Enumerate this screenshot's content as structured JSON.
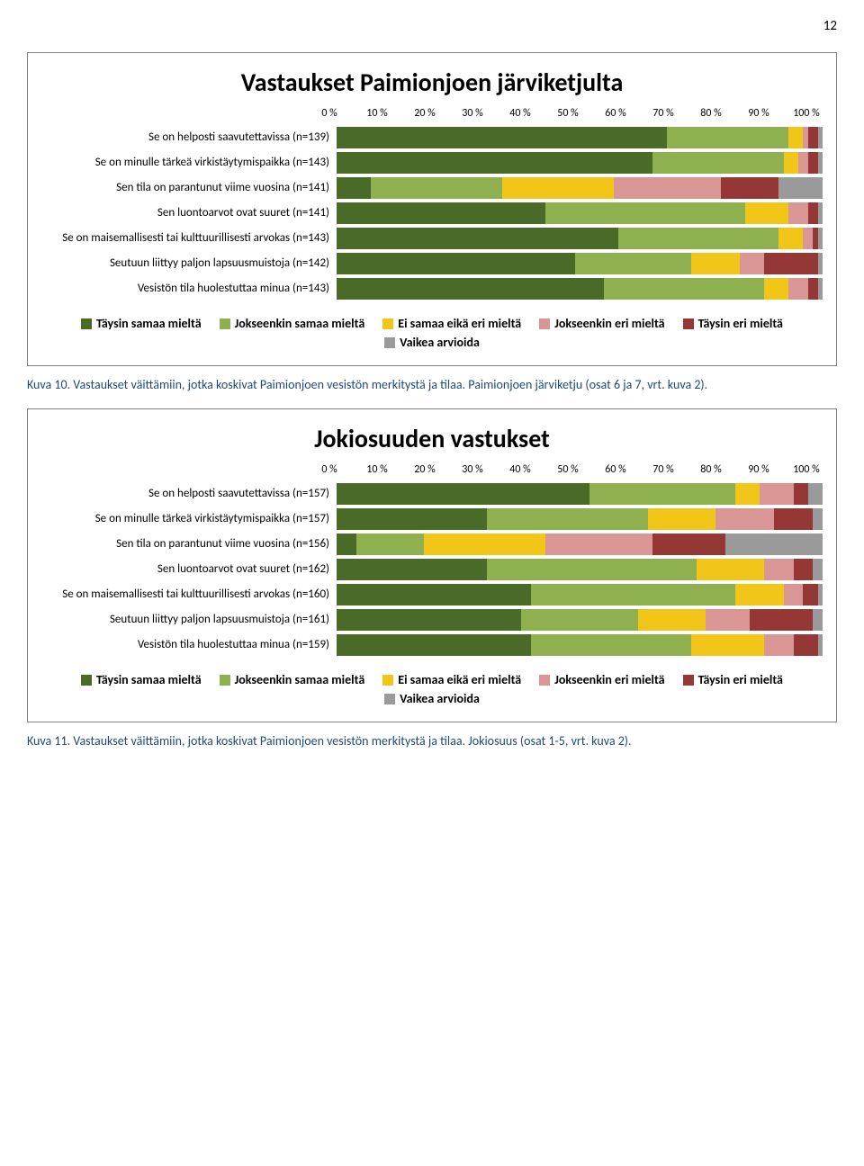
{
  "page_number": "12",
  "colors": {
    "c1": "#4a6b28",
    "c2": "#8fb04e",
    "c3": "#f2c618",
    "c4": "#d99694",
    "c5": "#953735",
    "c6": "#9a9a9a"
  },
  "axis_ticks": [
    "0 %",
    "10 %",
    "20 %",
    "30 %",
    "40 %",
    "50 %",
    "60 %",
    "70 %",
    "80 %",
    "90 %",
    "100 %"
  ],
  "legend": [
    {
      "label": "Täysin samaa mieltä",
      "color_key": "c1"
    },
    {
      "label": "Jokseenkin samaa mieltä",
      "color_key": "c2"
    },
    {
      "label": "Ei samaa eikä eri mieltä",
      "color_key": "c3"
    },
    {
      "label": "Jokseenkin eri mieltä",
      "color_key": "c4"
    },
    {
      "label": "Täysin eri mieltä",
      "color_key": "c5"
    },
    {
      "label": "Vaikea arvioida",
      "color_key": "c6"
    }
  ],
  "chart1": {
    "title": "Vastaukset Paimionjoen järviketjulta",
    "rows": [
      {
        "label": "Se on helposti saavutettavissa (n=139)",
        "values": [
          68,
          25,
          3,
          1,
          2,
          1
        ]
      },
      {
        "label": "Se on minulle tärkeä virkistäytymispaikka (n=143)",
        "values": [
          65,
          27,
          3,
          2,
          2,
          1
        ]
      },
      {
        "label": "Sen tila on parantunut viime vuosina (n=141)",
        "values": [
          7,
          27,
          23,
          22,
          12,
          9
        ]
      },
      {
        "label": "Sen luontoarvot ovat suuret (n=141)",
        "values": [
          43,
          41,
          9,
          4,
          2,
          1
        ]
      },
      {
        "label": "Se on maisemallisesti tai kulttuurillisesti arvokas (n=143)",
        "values": [
          58,
          33,
          5,
          2,
          1,
          1
        ]
      },
      {
        "label": "Seutuun liittyy paljon lapsuusmuistoja (n=142)",
        "values": [
          49,
          24,
          10,
          5,
          11,
          1
        ]
      },
      {
        "label": "Vesistön tila huolestuttaa minua (n=143)",
        "values": [
          55,
          33,
          5,
          4,
          2,
          1
        ]
      }
    ]
  },
  "chart2": {
    "title": "Jokiosuuden vastukset",
    "rows": [
      {
        "label": "Se on helposti saavutettavissa (n=157)",
        "values": [
          52,
          30,
          5,
          7,
          3,
          3
        ]
      },
      {
        "label": "Se on minulle tärkeä virkistäytymispaikka (n=157)",
        "values": [
          31,
          33,
          14,
          12,
          8,
          2
        ]
      },
      {
        "label": "Sen tila on parantunut viime vuosina (n=156)",
        "values": [
          4,
          14,
          25,
          22,
          15,
          20
        ]
      },
      {
        "label": "Sen luontoarvot ovat suuret (n=162)",
        "values": [
          31,
          43,
          14,
          6,
          4,
          2
        ]
      },
      {
        "label": "Se on maisemallisesti tai kulttuurillisesti arvokas (n=160)",
        "values": [
          40,
          42,
          10,
          4,
          3,
          1
        ]
      },
      {
        "label": "Seutuun liittyy paljon lapsuusmuistoja (n=161)",
        "values": [
          38,
          24,
          14,
          9,
          13,
          2
        ]
      },
      {
        "label": "Vesistön tila huolestuttaa minua (n=159)",
        "values": [
          40,
          33,
          15,
          6,
          5,
          1
        ]
      }
    ]
  },
  "caption1": "Kuva 10. Vastaukset väittämiin, jotka koskivat Paimionjoen vesistön merkitystä ja tilaa. Paimionjoen järviketju (osat 6 ja 7, vrt. kuva 2).",
  "caption2": "Kuva 11. Vastaukset väittämiin, jotka koskivat Paimionjoen vesistön merkitystä ja tilaa. Jokiosuus (osat 1-5, vrt. kuva 2)."
}
